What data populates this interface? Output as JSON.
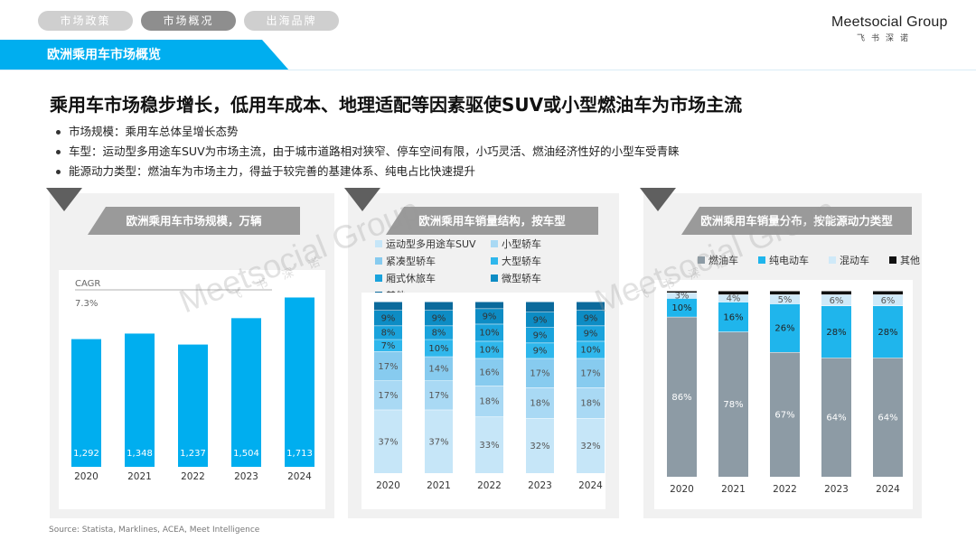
{
  "tabs": [
    {
      "label": "市场政策",
      "active": false
    },
    {
      "label": "市场概况",
      "active": true
    },
    {
      "label": "出海品牌",
      "active": false
    }
  ],
  "logo": {
    "word": "Meetsocial Group",
    "sub": "飞书深诺"
  },
  "banner": {
    "title": "欧洲乘用车市场概览"
  },
  "headline": "乘用车市场稳步增长，低用车成本、地理适配等因素驱使SUV或小型燃油车为市场主流",
  "bullets": [
    "市场规模：乘用车总体呈增长态势",
    "车型：运动型多用途车SUV为市场主流，由于城市道路相对狭窄、停车空间有限，小巧灵活、燃油经济性好的小型车受青睐",
    "能源动力类型：燃油车为市场主力，得益于较完善的基建体系、纯电占比快速提升"
  ],
  "source": "Source: Statista, Marklines, ACEA, Meet Intelligence",
  "colors": {
    "accent": "#00aeef",
    "panel_label": "#9a9a9a"
  },
  "chart_data": [
    {
      "type": "bar",
      "title": "欧洲乘用车市场规模，万辆",
      "categories": [
        "2020",
        "2021",
        "2022",
        "2023",
        "2024"
      ],
      "values": [
        1292,
        1348,
        1237,
        1504,
        1713
      ],
      "value_labels": [
        "1,292",
        "1,348",
        "1,237",
        "1,504",
        "1,713"
      ],
      "cagr_label": "CAGR",
      "cagr_value": "7.3%",
      "ylim": [
        0,
        1900
      ],
      "color": "#00aeef"
    },
    {
      "type": "bar",
      "stacked": true,
      "title": "欧洲乘用车销量结构，按车型",
      "categories": [
        "2020",
        "2021",
        "2022",
        "2023",
        "2024"
      ],
      "series": [
        {
          "name": "运动型多用途车SUV",
          "color": "#c6e6f8",
          "values": [
            37,
            37,
            33,
            32,
            32
          ]
        },
        {
          "name": "小型轿车",
          "color": "#a9d9f4",
          "values": [
            17,
            17,
            18,
            18,
            18
          ]
        },
        {
          "name": "紧凑型轿车",
          "color": "#87cbef",
          "values": [
            17,
            14,
            16,
            17,
            17
          ]
        },
        {
          "name": "大型轿车",
          "color": "#2fb7ec",
          "values": [
            7,
            10,
            10,
            9,
            10
          ]
        },
        {
          "name": "厢式休旅车",
          "color": "#1aa3dc",
          "values": [
            8,
            8,
            10,
            9,
            9
          ]
        },
        {
          "name": "微型轿车",
          "color": "#0d8cc4",
          "values": [
            9,
            9,
            9,
            9,
            9
          ]
        },
        {
          "name": "其他",
          "color": "#0b6a9c",
          "values": [
            5,
            5,
            4,
            6,
            5
          ]
        }
      ],
      "labels": [
        [
          "37%",
          "17%",
          "17%",
          "7%",
          "8%",
          "9%",
          ""
        ],
        [
          "37%",
          "17%",
          "14%",
          "10%",
          "8%",
          "9%",
          ""
        ],
        [
          "33%",
          "18%",
          "16%",
          "10%",
          "10%",
          "9%",
          ""
        ],
        [
          "32%",
          "18%",
          "17%",
          "9%",
          "9%",
          "9%",
          ""
        ],
        [
          "32%",
          "18%",
          "17%",
          "10%",
          "9%",
          "9%",
          ""
        ]
      ],
      "ylim": [
        0,
        100
      ]
    },
    {
      "type": "bar",
      "stacked": true,
      "title": "欧洲乘用车销量分布，按能源动力类型",
      "categories": [
        "2020",
        "2021",
        "2022",
        "2023",
        "2024"
      ],
      "series": [
        {
          "name": "燃油车",
          "color": "#8d9ba5",
          "values": [
            86,
            78,
            67,
            64,
            64
          ]
        },
        {
          "name": "纯电动车",
          "color": "#1fb5ec",
          "values": [
            10,
            16,
            26,
            28,
            28
          ]
        },
        {
          "name": "混动车",
          "color": "#cfe9f8",
          "values": [
            3,
            4,
            5,
            6,
            6
          ]
        },
        {
          "name": "其他",
          "color": "#111111",
          "values": [
            1,
            2,
            2,
            2,
            2
          ]
        }
      ],
      "labels": [
        [
          "86%",
          "10%",
          "3%",
          ""
        ],
        [
          "78%",
          "16%",
          "4%",
          ""
        ],
        [
          "67%",
          "26%",
          "5%",
          ""
        ],
        [
          "64%",
          "28%",
          "6%",
          ""
        ],
        [
          "64%",
          "28%",
          "6%",
          ""
        ]
      ],
      "ylim": [
        0,
        100
      ]
    }
  ]
}
